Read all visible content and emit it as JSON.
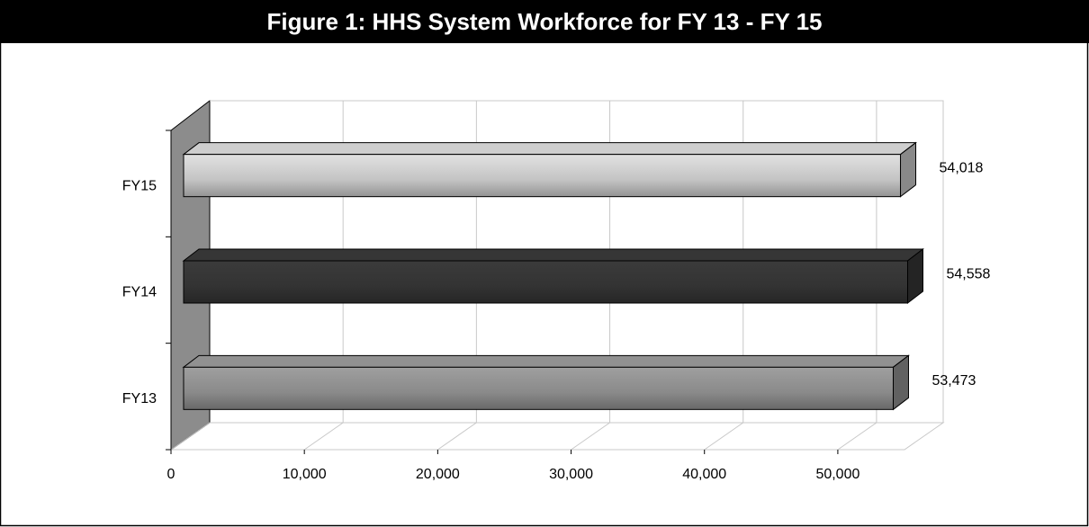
{
  "chart_data": {
    "type": "bar",
    "orientation": "horizontal",
    "title": "Figure 1: HHS System Workforce for FY 13 - FY 15",
    "categories": [
      "FY15",
      "FY14",
      "FY13"
    ],
    "values": [
      54018,
      54558,
      53473
    ],
    "value_labels": [
      "54,018",
      "54,558",
      "53,473"
    ],
    "colors": [
      "#c4c4c4",
      "#333333",
      "#8a8a8a"
    ],
    "xlim": [
      0,
      55000
    ],
    "xticks": [
      0,
      {
        "value": 10000,
        "label": "10,000"
      },
      {
        "value": 20000,
        "label": "20,000"
      },
      {
        "value": 30000,
        "label": "30,000"
      },
      {
        "value": 40000,
        "label": "40,000"
      },
      {
        "value": 50000,
        "label": "50,000"
      }
    ],
    "grid": true
  }
}
